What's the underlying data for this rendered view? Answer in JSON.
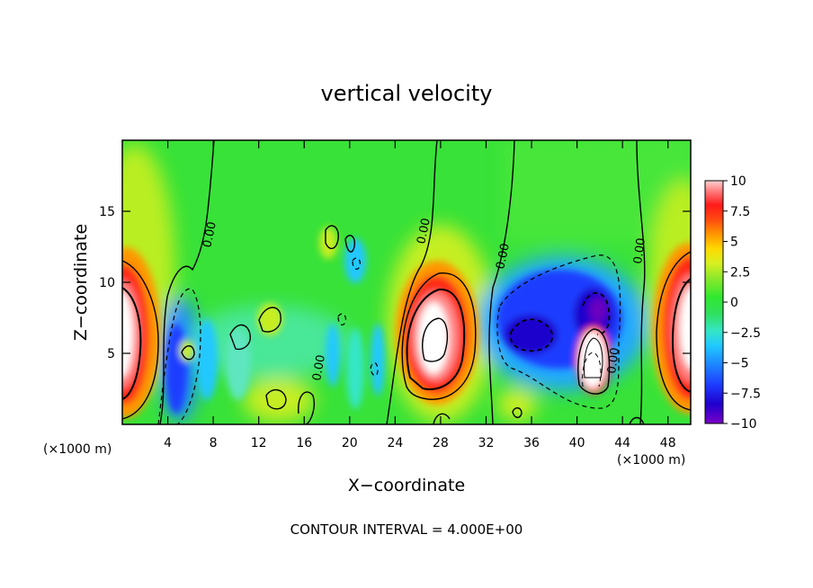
{
  "chart_data": {
    "type": "heatmap",
    "title": "vertical velocity",
    "xlabel": "X−coordinate",
    "ylabel": "Z−coordinate",
    "x_unit_left": "(×1000 m)",
    "x_unit_right": "(×1000 m)",
    "footer": "CONTOUR INTERVAL = 4.000E+00",
    "xlim": [
      0,
      50
    ],
    "ylim": [
      0,
      20
    ],
    "x_ticks": [
      4,
      8,
      12,
      16,
      20,
      24,
      28,
      32,
      36,
      40,
      44,
      48
    ],
    "x_tick_labels": [
      "4",
      "8",
      "12",
      "16",
      "20",
      "24",
      "28",
      "32",
      "36",
      "40",
      "44",
      "48"
    ],
    "y_ticks": [
      5,
      10,
      15
    ],
    "y_tick_labels": [
      "5",
      "10",
      "15"
    ],
    "colorbar": {
      "min": -10,
      "max": 10,
      "ticks": [
        10,
        7.5,
        5,
        2.5,
        0,
        -2.5,
        -5,
        -7.5,
        -10
      ],
      "tick_labels": [
        "10",
        "7.5",
        "5",
        "2.5",
        "0",
        "−2.5",
        "−5",
        "−7.5",
        "−10"
      ],
      "colors": [
        "#7a00c8",
        "#1f00cc",
        "#1e3cff",
        "#1e8cff",
        "#20c8ff",
        "#34e6c8",
        "#30e060",
        "#30e830",
        "#8ee82a",
        "#d8f020",
        "#ffd800",
        "#ff9600",
        "#ff4a10",
        "#ff1a1a",
        "#ff7070",
        "#ffd0d0"
      ]
    },
    "contour_labels": [
      {
        "text": "0.00",
        "x": 7.5,
        "z": 13.5
      },
      {
        "text": "0.00",
        "x": 26.5,
        "z": 14.2
      },
      {
        "text": "0.00",
        "x": 33.5,
        "z": 11.5
      },
      {
        "text": "0.00",
        "x": 45.0,
        "z": 12.5
      },
      {
        "text": "0.00",
        "x": 17.2,
        "z": 4.0
      },
      {
        "text": "0.00",
        "x": 43.5,
        "z": 4.5
      }
    ],
    "features": [
      {
        "kind": "updraft",
        "x": 0.5,
        "z": 6.5,
        "peak": 12
      },
      {
        "kind": "updraft",
        "x": 27.3,
        "z": 6.0,
        "peak": 12
      },
      {
        "kind": "updraft",
        "x": 49.5,
        "z": 6.5,
        "peak": 12
      },
      {
        "kind": "updraft",
        "x": 40.8,
        "z": 4.8,
        "peak": 14
      },
      {
        "kind": "downdraft",
        "x": 38.0,
        "z": 6.5,
        "peak": -8
      },
      {
        "kind": "downdraft",
        "x": 4.5,
        "z": 4.0,
        "peak": -6
      },
      {
        "kind": "weak",
        "x": 12.5,
        "z": 2.0,
        "peak": 2.5
      },
      {
        "kind": "weak",
        "x": 33.0,
        "z": 1.5,
        "peak": 2
      }
    ]
  }
}
